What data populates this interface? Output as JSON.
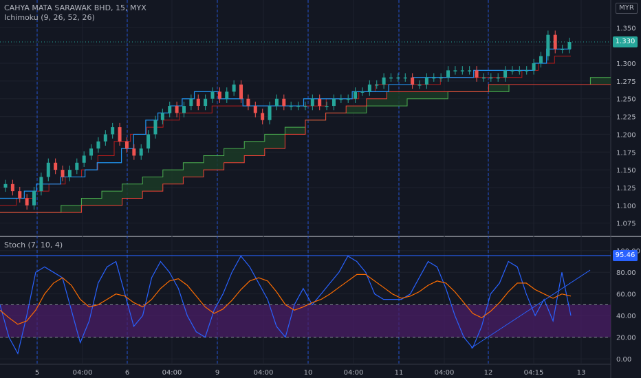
{
  "header": {
    "symbol": "CAHYA MATA SARAWAK BHD, 15, MYX",
    "ichimoku_label": "Ichimoku (9, 26, 52, 26)",
    "stoch_label": "Stoch (7, 10, 4)",
    "currency": "MYR"
  },
  "colors": {
    "background": "#131722",
    "grid": "#1e222d",
    "session_line": "#2962ff",
    "up_candle": "#26a69a",
    "down_candle": "#ef5350",
    "conversion_line": "#2196f3",
    "base_line": "#b71c1c",
    "span_a": "#4caf50",
    "span_b": "#f44336",
    "cloud_fill": "#1b3a26",
    "stoch_k": "#2962ff",
    "stoch_d": "#ff6d00",
    "stoch_band": "#4a1e66"
  },
  "chart_data": [
    {
      "type": "candlestick",
      "title": "CAHYA MATA SARAWAK BHD, 15, MYX",
      "indicator": "Ichimoku (9, 26, 52, 26)",
      "y_ticks": [
        1.075,
        1.1,
        1.125,
        1.15,
        1.175,
        1.2,
        1.225,
        1.25,
        1.275,
        1.3,
        1.325,
        1.35
      ],
      "y_tick_labels": [
        "1.075",
        "1.100",
        "1.125",
        "1.150",
        "1.175",
        "1.200",
        "1.225",
        "1.250",
        "1.275",
        "1.300",
        "",
        "1.350"
      ],
      "ylim": [
        1.065,
        1.36
      ],
      "last_price": 1.33,
      "last_price_label": "1.330",
      "x_ticks": [
        "5",
        "04:00",
        "6",
        "04:00",
        "9",
        "04:00",
        "10",
        "04:00",
        "11",
        "04:00",
        "12",
        "04:15",
        "13"
      ],
      "closes": [
        1.13,
        1.12,
        1.11,
        1.1,
        1.12,
        1.14,
        1.16,
        1.15,
        1.14,
        1.15,
        1.16,
        1.17,
        1.18,
        1.19,
        1.2,
        1.21,
        1.19,
        1.18,
        1.17,
        1.18,
        1.2,
        1.22,
        1.23,
        1.24,
        1.23,
        1.24,
        1.25,
        1.24,
        1.25,
        1.26,
        1.25,
        1.26,
        1.27,
        1.25,
        1.24,
        1.23,
        1.22,
        1.24,
        1.25,
        1.24,
        1.24,
        1.24,
        1.24,
        1.25,
        1.24,
        1.24,
        1.25,
        1.25,
        1.25,
        1.26,
        1.26,
        1.27,
        1.27,
        1.28,
        1.28,
        1.28,
        1.28,
        1.27,
        1.27,
        1.28,
        1.28,
        1.28,
        1.29,
        1.29,
        1.29,
        1.29,
        1.28,
        1.28,
        1.28,
        1.28,
        1.29,
        1.29,
        1.29,
        1.29,
        1.3,
        1.31,
        1.34,
        1.32,
        1.32,
        1.33
      ],
      "conversion_line": [
        1.11,
        1.11,
        1.12,
        1.13,
        1.13,
        1.14,
        1.14,
        1.15,
        1.16,
        1.16,
        1.18,
        1.2,
        1.22,
        1.23,
        1.24,
        1.25,
        1.26,
        1.26,
        1.25,
        1.25,
        1.24,
        1.24,
        1.24,
        1.24,
        1.24,
        1.25,
        1.25,
        1.25,
        1.25,
        1.26,
        1.26,
        1.26,
        1.27,
        1.27,
        1.28,
        1.28,
        1.28,
        1.28,
        1.28,
        1.29,
        1.29,
        1.29,
        1.29,
        1.29,
        1.3,
        1.32,
        1.32,
        1.32
      ],
      "base_line": [
        1.1,
        1.11,
        1.12,
        1.13,
        1.14,
        1.15,
        1.17,
        1.19,
        1.2,
        1.21,
        1.22,
        1.23,
        1.23,
        1.24,
        1.24,
        1.24,
        1.24,
        1.24,
        1.24,
        1.24,
        1.25,
        1.25,
        1.26,
        1.27,
        1.27,
        1.27,
        1.27,
        1.28,
        1.28,
        1.28,
        1.28,
        1.28,
        1.29,
        1.3,
        1.31,
        1.31
      ],
      "span_a": [
        1.09,
        1.09,
        1.09,
        1.1,
        1.11,
        1.12,
        1.13,
        1.14,
        1.15,
        1.16,
        1.17,
        1.18,
        1.19,
        1.2,
        1.21,
        1.22,
        1.23,
        1.23,
        1.24,
        1.24,
        1.25,
        1.25,
        1.26,
        1.26,
        1.26,
        1.27,
        1.27,
        1.27,
        1.27,
        1.28,
        1.28
      ],
      "span_b": [
        1.09,
        1.09,
        1.09,
        1.09,
        1.1,
        1.1,
        1.11,
        1.12,
        1.13,
        1.14,
        1.15,
        1.16,
        1.17,
        1.18,
        1.2,
        1.22,
        1.23,
        1.24,
        1.25,
        1.26,
        1.26,
        1.26,
        1.26,
        1.26,
        1.27,
        1.27,
        1.27,
        1.27,
        1.27,
        1.27,
        1.27
      ]
    },
    {
      "type": "line",
      "title": "Stoch (7, 10, 4)",
      "y_ticks": [
        0,
        20,
        40,
        60,
        80,
        100
      ],
      "y_tick_labels": [
        "0.00",
        "20.00",
        "40.00",
        "60.00",
        "80.00",
        "100.00"
      ],
      "ylim": [
        -5,
        103
      ],
      "band": [
        20,
        50
      ],
      "last_value_label": "95.46",
      "last_value": 95.46,
      "series": [
        {
          "name": "%K",
          "values": [
            50,
            20,
            5,
            40,
            80,
            85,
            80,
            75,
            45,
            15,
            35,
            70,
            85,
            90,
            60,
            30,
            40,
            75,
            90,
            80,
            65,
            40,
            25,
            20,
            45,
            60,
            80,
            95,
            85,
            70,
            55,
            30,
            20,
            50,
            65,
            50,
            60,
            70,
            80,
            95,
            90,
            80,
            60,
            55,
            55,
            55,
            60,
            75,
            90,
            85,
            65,
            40,
            20,
            10,
            30,
            60,
            70,
            90,
            85,
            60,
            40,
            55,
            35,
            80,
            40
          ]
        },
        {
          "name": "%D",
          "values": [
            45,
            38,
            32,
            35,
            45,
            60,
            70,
            75,
            68,
            55,
            48,
            50,
            55,
            60,
            58,
            52,
            48,
            55,
            65,
            72,
            74,
            68,
            58,
            48,
            42,
            46,
            54,
            64,
            72,
            75,
            72,
            62,
            50,
            45,
            48,
            52,
            55,
            60,
            66,
            72,
            78,
            78,
            72,
            66,
            60,
            56,
            58,
            62,
            68,
            72,
            70,
            62,
            52,
            42,
            38,
            44,
            52,
            62,
            70,
            70,
            64,
            60,
            56,
            60,
            58
          ]
        }
      ]
    }
  ]
}
